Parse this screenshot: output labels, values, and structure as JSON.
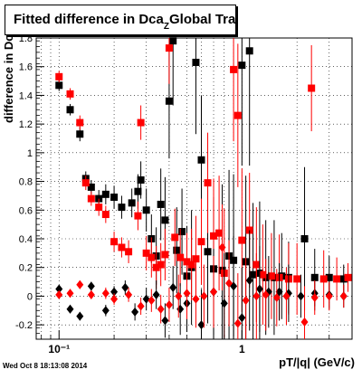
{
  "title": "Fitted difference in Dca",
  "title_sub": "Z",
  "title_tail": "Global Tracks",
  "timestamp": "Wed Oct  8 18:13:08 2014",
  "chart_data": {
    "type": "scatter",
    "xlabel": "pT/|q| (GeV/c)",
    "ylabel": "difference in Dc",
    "x_scale": "log",
    "xlim": [
      0.075,
      4.0
    ],
    "ylim": [
      -0.3,
      1.8
    ],
    "grid": true,
    "yticks": [
      -0.2,
      0,
      0.2,
      0.4,
      0.6,
      0.8,
      1,
      1.2,
      1.4,
      1.6,
      1.8
    ],
    "ytick_labels": [
      "-0.2",
      "0",
      "0.2",
      "0.4",
      "0.6",
      "0.8",
      "1",
      "1.2",
      "1.4",
      "1.6",
      "1.8"
    ],
    "xticks": [
      0.1,
      1
    ],
    "xtick_labels": [
      "10⁻¹",
      "1"
    ],
    "series": [
      {
        "marker": "square",
        "color": "#000000",
        "points": [
          [
            0.1,
            1.47,
            0.04
          ],
          [
            0.115,
            1.3,
            0.04
          ],
          [
            0.13,
            1.13,
            0.05
          ],
          [
            0.14,
            0.82,
            0.05
          ],
          [
            0.15,
            0.76,
            0.05
          ],
          [
            0.165,
            0.68,
            0.06
          ],
          [
            0.18,
            0.71,
            0.07
          ],
          [
            0.2,
            0.69,
            0.08
          ],
          [
            0.22,
            0.62,
            0.08
          ],
          [
            0.25,
            0.65,
            0.1
          ],
          [
            0.27,
            0.73,
            0.12
          ],
          [
            0.28,
            0.81,
            0.13
          ],
          [
            0.3,
            0.6,
            0.15
          ],
          [
            0.32,
            0.4,
            0.17
          ],
          [
            0.34,
            0.28,
            0.2
          ],
          [
            0.36,
            0.64,
            0.25
          ],
          [
            0.38,
            0.53,
            0.3
          ],
          [
            0.4,
            1.36,
            0.4
          ],
          [
            0.42,
            1.78,
            0.45
          ],
          [
            0.44,
            0.32,
            0.3
          ],
          [
            0.47,
            0.45,
            0.3
          ],
          [
            0.5,
            0.14,
            0.35
          ],
          [
            0.53,
            0.2,
            0.4
          ],
          [
            0.56,
            1.63,
            0.5
          ],
          [
            0.6,
            0.95,
            0.45
          ],
          [
            0.65,
            0.31,
            0.5
          ],
          [
            0.7,
            0.19,
            0.5
          ],
          [
            0.78,
            0.18,
            0.6
          ],
          [
            0.85,
            0.28,
            0.6
          ],
          [
            0.9,
            0.25,
            0.6
          ],
          [
            1.0,
            1.61,
            0.7
          ],
          [
            1.05,
            0.24,
            0.6
          ],
          [
            1.1,
            1.71,
            0.8
          ],
          [
            1.15,
            0.15,
            0.5
          ],
          [
            1.25,
            0.16,
            0.5
          ],
          [
            1.35,
            0.13,
            0.4
          ],
          [
            1.5,
            0.13,
            0.4
          ],
          [
            1.65,
            0.14,
            0.3
          ],
          [
            1.8,
            0.13,
            0.25
          ],
          [
            2.2,
            0.4,
            0.5
          ],
          [
            2.5,
            0.13,
            0.2
          ],
          [
            3.0,
            0.13,
            0.15
          ],
          [
            3.6,
            0.12,
            0.1
          ]
        ]
      },
      {
        "marker": "square",
        "color": "#ff0000",
        "points": [
          [
            0.1,
            1.53,
            0.04
          ],
          [
            0.115,
            1.41,
            0.04
          ],
          [
            0.13,
            1.21,
            0.05
          ],
          [
            0.14,
            0.79,
            0.05
          ],
          [
            0.15,
            0.68,
            0.05
          ],
          [
            0.165,
            0.62,
            0.06
          ],
          [
            0.18,
            0.57,
            0.06
          ],
          [
            0.2,
            0.38,
            0.07
          ],
          [
            0.22,
            0.34,
            0.07
          ],
          [
            0.24,
            0.31,
            0.08
          ],
          [
            0.27,
            0.56,
            0.1
          ],
          [
            0.28,
            1.21,
            0.12
          ],
          [
            0.3,
            0.3,
            0.12
          ],
          [
            0.32,
            0.27,
            0.14
          ],
          [
            0.34,
            0.2,
            0.15
          ],
          [
            0.36,
            0.22,
            0.15
          ],
          [
            0.38,
            0.29,
            0.18
          ],
          [
            0.4,
            1.73,
            0.25
          ],
          [
            0.43,
            0.41,
            0.2
          ],
          [
            0.46,
            0.27,
            0.2
          ],
          [
            0.5,
            0.24,
            0.2
          ],
          [
            0.53,
            0.22,
            0.25
          ],
          [
            0.56,
            0.26,
            0.3
          ],
          [
            0.6,
            0.38,
            0.3
          ],
          [
            0.65,
            0.79,
            0.35
          ],
          [
            0.7,
            0.42,
            0.4
          ],
          [
            0.75,
            0.44,
            0.4
          ],
          [
            0.8,
            0.16,
            0.45
          ],
          [
            0.9,
            1.58,
            0.5
          ],
          [
            0.95,
            1.26,
            0.5
          ],
          [
            1.0,
            0.39,
            0.5
          ],
          [
            1.1,
            0.46,
            0.4
          ],
          [
            1.2,
            0.22,
            0.4
          ],
          [
            1.3,
            0.15,
            0.35
          ],
          [
            1.45,
            0.14,
            0.3
          ],
          [
            1.6,
            0.13,
            0.3
          ],
          [
            1.8,
            0.12,
            0.25
          ],
          [
            2.0,
            0.12,
            0.25
          ],
          [
            2.4,
            1.45,
            0.3
          ],
          [
            2.8,
            0.12,
            0.2
          ],
          [
            3.3,
            0.12,
            0.15
          ],
          [
            3.8,
            0.13,
            0.1
          ]
        ]
      },
      {
        "marker": "diamond",
        "color": "#000000",
        "points": [
          [
            0.1,
            0.05,
            0.02
          ],
          [
            0.115,
            -0.09,
            0.03
          ],
          [
            0.13,
            -0.14,
            0.03
          ],
          [
            0.15,
            0.07,
            0.03
          ],
          [
            0.18,
            -0.1,
            0.04
          ],
          [
            0.2,
            0.03,
            0.04
          ],
          [
            0.23,
            0.06,
            0.05
          ],
          [
            0.26,
            -0.11,
            0.06
          ],
          [
            0.3,
            -0.02,
            0.08
          ],
          [
            0.34,
            0.01,
            0.1
          ],
          [
            0.38,
            -0.17,
            0.12
          ],
          [
            0.42,
            0.06,
            0.15
          ],
          [
            0.46,
            -0.09,
            0.18
          ],
          [
            0.5,
            -0.05,
            0.2
          ],
          [
            0.6,
            -0.2,
            0.25
          ],
          [
            0.7,
            0.03,
            0.3
          ],
          [
            0.8,
            -0.05,
            0.35
          ],
          [
            0.9,
            0.07,
            0.35
          ],
          [
            1.0,
            -0.15,
            0.35
          ],
          [
            1.1,
            0.11,
            0.35
          ],
          [
            1.25,
            0.05,
            0.3
          ],
          [
            1.4,
            0.03,
            0.25
          ],
          [
            1.6,
            0.03,
            0.2
          ],
          [
            1.8,
            0.02,
            0.2
          ],
          [
            2.1,
            0.0,
            0.15
          ],
          [
            2.5,
            0.02,
            0.12
          ],
          [
            3.0,
            0.01,
            0.1
          ],
          [
            3.6,
            0.0,
            0.08
          ]
        ]
      },
      {
        "marker": "diamond",
        "color": "#ff0000",
        "points": [
          [
            0.1,
            0.01,
            0.02
          ],
          [
            0.115,
            0.02,
            0.03
          ],
          [
            0.13,
            0.08,
            0.03
          ],
          [
            0.15,
            0.01,
            0.03
          ],
          [
            0.18,
            0.02,
            0.04
          ],
          [
            0.2,
            -0.02,
            0.04
          ],
          [
            0.24,
            0.01,
            0.05
          ],
          [
            0.28,
            -0.07,
            0.06
          ],
          [
            0.32,
            -0.03,
            0.08
          ],
          [
            0.36,
            -0.09,
            0.1
          ],
          [
            0.4,
            -0.06,
            0.12
          ],
          [
            0.45,
            0.0,
            0.15
          ],
          [
            0.5,
            0.02,
            0.18
          ],
          [
            0.56,
            -0.02,
            0.2
          ],
          [
            0.62,
            0.0,
            0.22
          ],
          [
            0.7,
            0.03,
            0.25
          ],
          [
            0.78,
            0.34,
            0.3
          ],
          [
            0.85,
            0.09,
            0.3
          ],
          [
            0.95,
            -0.19,
            0.35
          ],
          [
            1.05,
            -0.03,
            0.3
          ],
          [
            1.2,
            0.0,
            0.3
          ],
          [
            1.35,
            0.01,
            0.25
          ],
          [
            1.55,
            -0.01,
            0.2
          ],
          [
            1.75,
            0.0,
            0.2
          ],
          [
            2.2,
            -0.18,
            0.25
          ],
          [
            2.5,
            -0.01,
            0.12
          ],
          [
            3.0,
            0.0,
            0.1
          ],
          [
            3.6,
            0.0,
            0.08
          ]
        ]
      }
    ]
  }
}
